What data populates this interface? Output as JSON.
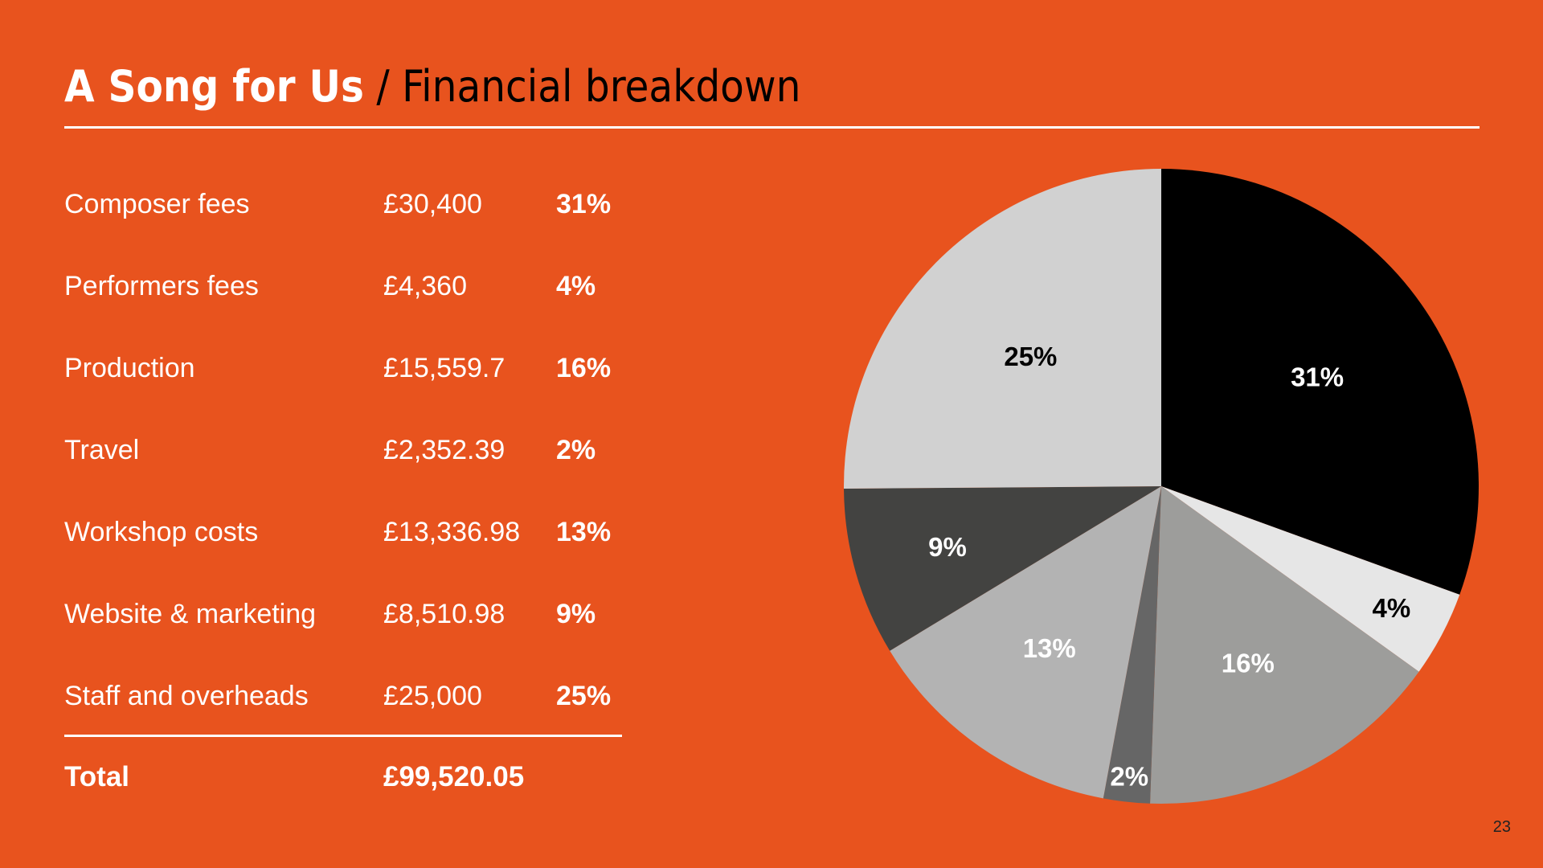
{
  "slide": {
    "title_bold": "A Song for Us",
    "title_sep": " / ",
    "title_rest": "Financial breakdown",
    "page_number": "23"
  },
  "table": {
    "rows": [
      {
        "label": "Composer fees",
        "amount": "£30,400",
        "pct": "31%"
      },
      {
        "label": "Performers fees",
        "amount": "£4,360",
        "pct": "4%"
      },
      {
        "label": "Production",
        "amount": "£15,559.7",
        "pct": "16%"
      },
      {
        "label": "Travel",
        "amount": "£2,352.39",
        "pct": "2%"
      },
      {
        "label": "Workshop costs",
        "amount": "£13,336.98",
        "pct": "13%"
      },
      {
        "label": "Website & marketing",
        "amount": "£8,510.98",
        "pct": "9%"
      },
      {
        "label": "Staff and overheads",
        "amount": "£25,000",
        "pct": "25%"
      }
    ],
    "total_label": "Total",
    "total_amount": "£99,520.05"
  },
  "chart_data": {
    "type": "pie",
    "categories": [
      "Composer fees",
      "Performers fees",
      "Production",
      "Travel",
      "Workshop costs",
      "Website & marketing",
      "Staff and overheads"
    ],
    "values": [
      30400,
      4360,
      15559.7,
      2352.39,
      13336.98,
      8510.98,
      25000
    ],
    "labels": [
      "31%",
      "4%",
      "16%",
      "2%",
      "13%",
      "9%",
      "25%"
    ],
    "colors": [
      "#000000",
      "#e6e6e6",
      "#9d9d9b",
      "#666666",
      "#b3b3b3",
      "#434341",
      "#d1d1d1"
    ],
    "label_colors": [
      "#ffffff",
      "#000000",
      "#ffffff",
      "#ffffff",
      "#ffffff",
      "#ffffff",
      "#000000"
    ],
    "start": "12 o'clock",
    "direction": "clockwise"
  },
  "colors": {
    "background": "#e8531e",
    "text": "#ffffff",
    "title_dark": "#000000"
  }
}
